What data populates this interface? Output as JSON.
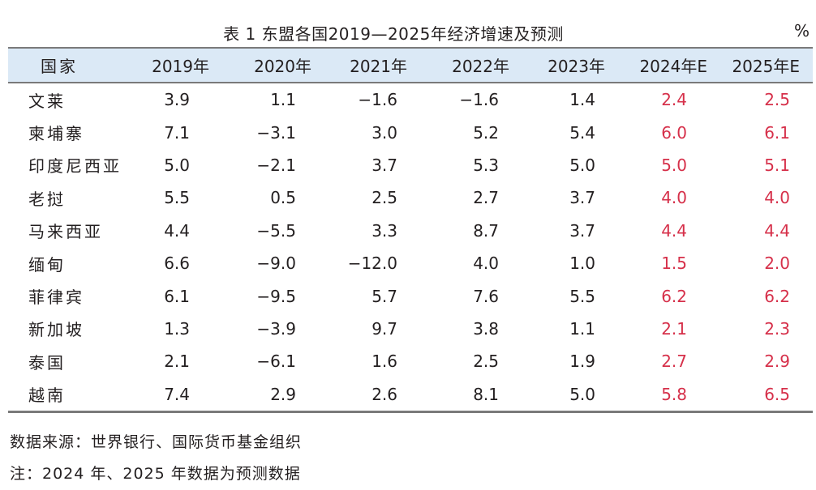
{
  "title": "表 1 东盟各国2019—2025年经济增速及预测",
  "unit": "%",
  "headers": [
    "国家",
    "2019年",
    "2020年",
    "2021年",
    "2022年",
    "2023年",
    "2024年E",
    "2025年E"
  ],
  "rows": [
    {
      "country": "文莱",
      "v2019": "3.9",
      "v2020": "1.1",
      "v2021": "−1.6",
      "v2022": "−1.6",
      "v2023": "1.4",
      "v2024e": "2.4",
      "v2025e": "2.5"
    },
    {
      "country": "柬埔寨",
      "v2019": "7.1",
      "v2020": "−3.1",
      "v2021": "3.0",
      "v2022": "5.2",
      "v2023": "5.4",
      "v2024e": "6.0",
      "v2025e": "6.1"
    },
    {
      "country": "印度尼西亚",
      "v2019": "5.0",
      "v2020": "−2.1",
      "v2021": "3.7",
      "v2022": "5.3",
      "v2023": "5.0",
      "v2024e": "5.0",
      "v2025e": "5.1"
    },
    {
      "country": "老挝",
      "v2019": "5.5",
      "v2020": "0.5",
      "v2021": "2.5",
      "v2022": "2.7",
      "v2023": "3.7",
      "v2024e": "4.0",
      "v2025e": "4.0"
    },
    {
      "country": "马来西亚",
      "v2019": "4.4",
      "v2020": "−5.5",
      "v2021": "3.3",
      "v2022": "8.7",
      "v2023": "3.7",
      "v2024e": "4.4",
      "v2025e": "4.4"
    },
    {
      "country": "缅甸",
      "v2019": "6.6",
      "v2020": "−9.0",
      "v2021": "−12.0",
      "v2022": "4.0",
      "v2023": "1.0",
      "v2024e": "1.5",
      "v2025e": "2.0"
    },
    {
      "country": "菲律宾",
      "v2019": "6.1",
      "v2020": "−9.5",
      "v2021": "5.7",
      "v2022": "7.6",
      "v2023": "5.5",
      "v2024e": "6.2",
      "v2025e": "6.2"
    },
    {
      "country": "新加坡",
      "v2019": "1.3",
      "v2020": "−3.9",
      "v2021": "9.7",
      "v2022": "3.8",
      "v2023": "1.1",
      "v2024e": "2.1",
      "v2025e": "2.3"
    },
    {
      "country": "泰国",
      "v2019": "2.1",
      "v2020": "−6.1",
      "v2021": "1.6",
      "v2022": "2.5",
      "v2023": "1.9",
      "v2024e": "2.7",
      "v2025e": "2.9"
    },
    {
      "country": "越南",
      "v2019": "7.4",
      "v2020": "2.9",
      "v2021": "2.6",
      "v2022": "8.1",
      "v2023": "5.0",
      "v2024e": "5.8",
      "v2025e": "6.5"
    }
  ],
  "estimate_color": "#d6304a",
  "header_bg": "#dbe9f6",
  "source": "数据来源：世界银行、国际货币基金组织",
  "note": "注：2024 年、2025 年数据为预测数据"
}
